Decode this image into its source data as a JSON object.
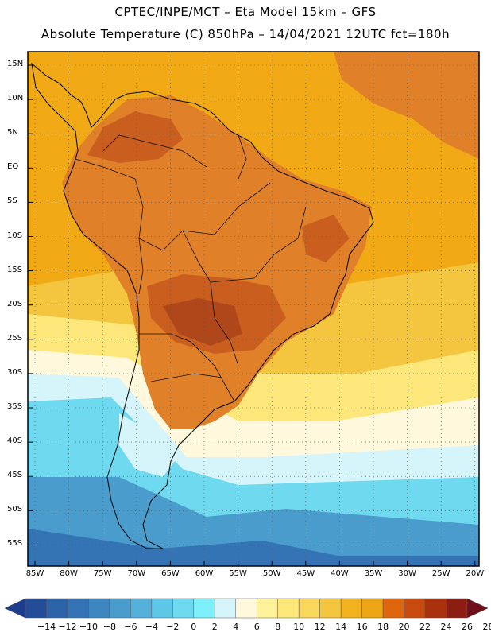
{
  "header": {
    "line1": "CPTEC/INPE/MCT  –   Eta Model 15km  –  GFS",
    "line2": "Absolute Temperature (C) 850hPa  –  14/04/2021  12UTC  fct=180h"
  },
  "axes": {
    "lat_labels": [
      "15N",
      "10N",
      "5N",
      "EQ",
      "5S",
      "10S",
      "15S",
      "20S",
      "25S",
      "30S",
      "35S",
      "40S",
      "45S",
      "50S",
      "55S"
    ],
    "lon_labels": [
      "85W",
      "80W",
      "75W",
      "70W",
      "65W",
      "60W",
      "55W",
      "50W",
      "45W",
      "40W",
      "35W",
      "30W",
      "25W",
      "20W"
    ]
  },
  "colorbar": {
    "labels": [
      "-14",
      "-12",
      "-10",
      "-8",
      "-6",
      "-4",
      "-2",
      "0",
      "2",
      "4",
      "6",
      "8",
      "10",
      "12",
      "14",
      "16",
      "18",
      "20",
      "22",
      "24",
      "26",
      "28"
    ],
    "colors": [
      "#1d3c8c",
      "#244d99",
      "#2c62a8",
      "#3574b4",
      "#3d86c0",
      "#4a9ccd",
      "#55b1da",
      "#5ec6e6",
      "#6ed9ef",
      "#7ef0fb",
      "#d6f5fb",
      "#fff8dc",
      "#fff29a",
      "#fde77a",
      "#f9d85c",
      "#f4c640",
      "#f0b21f",
      "#eca515",
      "#e0660e",
      "#c94a0e",
      "#a8300c",
      "#8c1d12",
      "#6e0f1a"
    ]
  },
  "map_colors": {
    "ocean_warm": "#f1a916",
    "ocean_mid": "#f4c640",
    "ocean_cool": "#fde77a",
    "cream": "#fff8dc",
    "ice": "#d6f5fb",
    "cyan": "#6ed9ef",
    "blue_mid": "#4a9ccd",
    "blue_dark": "#3574b4",
    "land_warm": "#e0812a",
    "land_hot": "#c95e1e",
    "land_hotter": "#b0471a"
  }
}
